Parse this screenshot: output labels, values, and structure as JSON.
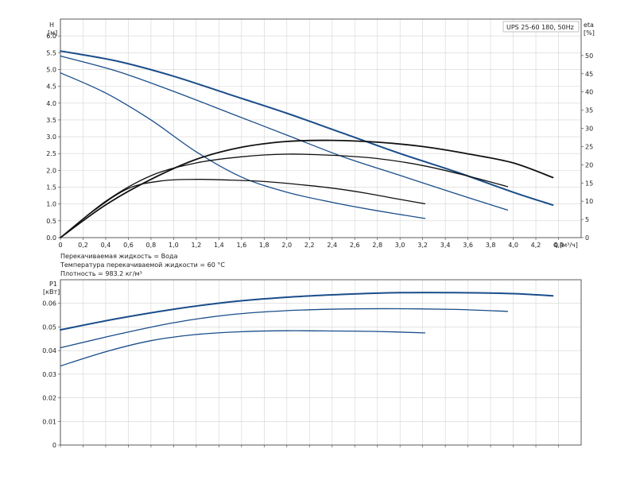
{
  "chart_data": [
    {
      "type": "line",
      "title": "UPS 25-60 180, 50Hz",
      "y_label": "H",
      "y_unit": "[м]",
      "y2_label": "eta",
      "y2_unit": "[%]",
      "x_label": "Q",
      "x_unit": "[м³/ч]",
      "xlim": [
        0,
        4.6
      ],
      "ylim": [
        0,
        6.5
      ],
      "y2lim": [
        0,
        60
      ],
      "grid": true,
      "x_ticks": [
        "0",
        "0,2",
        "0,4",
        "0,6",
        "0,8",
        "1,0",
        "1,2",
        "1,4",
        "1,6",
        "1,8",
        "2,0",
        "2,2",
        "2,4",
        "2,6",
        "2,8",
        "3,0",
        "3,2",
        "3,4",
        "3,6",
        "3,8",
        "4,0",
        "4,2",
        "4,4"
      ],
      "y_ticks": [
        "0.0",
        "0.5",
        "1.0",
        "1.5",
        "2.0",
        "2.5",
        "3.0",
        "3.5",
        "4.0",
        "4.5",
        "5.0",
        "5.5",
        "6.0"
      ],
      "y2_ticks": [
        "0",
        "5",
        "10",
        "15",
        "20",
        "25",
        "30",
        "35",
        "40",
        "45",
        "50"
      ],
      "series": [
        {
          "kind": "head",
          "axis": "left",
          "color": "#1a4d8a",
          "width": 2.0,
          "x": [
            0,
            0.5,
            1.0,
            1.5,
            2.0,
            2.5,
            3.0,
            3.5,
            4.0,
            4.35
          ],
          "y": [
            5.55,
            5.25,
            4.8,
            4.25,
            3.7,
            3.1,
            2.5,
            1.95,
            1.35,
            0.97
          ]
        },
        {
          "kind": "head",
          "axis": "left",
          "color": "#1a4d8a",
          "width": 1.3,
          "x": [
            0,
            0.5,
            1.0,
            1.5,
            2.0,
            2.5,
            3.0,
            3.5,
            3.95
          ],
          "y": [
            5.4,
            4.95,
            4.35,
            3.7,
            3.05,
            2.4,
            1.85,
            1.3,
            0.82
          ]
        },
        {
          "kind": "head",
          "axis": "left",
          "color": "#1a4d8a",
          "width": 1.3,
          "x": [
            0,
            0.4,
            0.8,
            1.2,
            1.6,
            2.0,
            2.4,
            2.8,
            3.22
          ],
          "y": [
            4.9,
            4.3,
            3.5,
            2.55,
            1.8,
            1.35,
            1.05,
            0.8,
            0.57
          ]
        },
        {
          "kind": "efficiency",
          "axis": "right",
          "color": "#111111",
          "width": 1.8,
          "x": [
            0,
            0.4,
            0.8,
            1.2,
            1.6,
            2.0,
            2.4,
            2.8,
            3.2,
            3.6,
            4.0,
            4.35
          ],
          "y": [
            0,
            9,
            16,
            21.5,
            24.8,
            26.4,
            26.7,
            26.2,
            25,
            23,
            20.5,
            16.5
          ]
        },
        {
          "kind": "efficiency",
          "axis": "right",
          "color": "#111111",
          "width": 1.3,
          "x": [
            0,
            0.4,
            0.8,
            1.2,
            1.6,
            2.0,
            2.4,
            2.8,
            3.2,
            3.6,
            3.95
          ],
          "y": [
            0,
            10,
            17,
            20.5,
            22.2,
            22.9,
            22.6,
            21.7,
            19.8,
            16.9,
            14
          ]
        },
        {
          "kind": "efficiency",
          "axis": "right",
          "color": "#111111",
          "width": 1.3,
          "x": [
            0,
            0.3,
            0.6,
            0.9,
            1.2,
            1.5,
            1.8,
            2.1,
            2.4,
            2.7,
            3.0,
            3.22
          ],
          "y": [
            0,
            7.5,
            13.5,
            15.6,
            16,
            15.8,
            15.4,
            14.6,
            13.6,
            12.2,
            10.5,
            9.3
          ]
        }
      ],
      "annotations": [
        "Перекачиваемая жидкость = Вода",
        "Температура перекачиваемой жидкости = 60 °C",
        "Плотность = 983.2 кг/м³"
      ]
    },
    {
      "type": "line",
      "y_label": "P1",
      "y_unit": "[кВт]",
      "xlim": [
        0,
        4.6
      ],
      "ylim": [
        0,
        0.07
      ],
      "grid": true,
      "y_ticks": [
        "0",
        "0.01",
        "0.02",
        "0.03",
        "0.04",
        "0.05",
        "0.06"
      ],
      "series": [
        {
          "color": "#1a4d8a",
          "width": 2.0,
          "x": [
            0,
            0.5,
            1.0,
            1.5,
            2.0,
            2.5,
            3.0,
            3.5,
            4.0,
            4.35
          ],
          "y": [
            0.0488,
            0.0535,
            0.0575,
            0.0606,
            0.0626,
            0.0638,
            0.0645,
            0.0645,
            0.0641,
            0.0632
          ]
        },
        {
          "color": "#1a4d8a",
          "width": 1.3,
          "x": [
            0,
            0.5,
            1.0,
            1.5,
            2.0,
            2.5,
            3.0,
            3.5,
            3.95
          ],
          "y": [
            0.0412,
            0.0468,
            0.0518,
            0.0552,
            0.0569,
            0.0576,
            0.0577,
            0.0574,
            0.0566
          ]
        },
        {
          "color": "#1a4d8a",
          "width": 1.3,
          "x": [
            0,
            0.4,
            0.8,
            1.2,
            1.6,
            2.0,
            2.4,
            2.8,
            3.22
          ],
          "y": [
            0.0335,
            0.0395,
            0.0442,
            0.0468,
            0.048,
            0.0484,
            0.0483,
            0.0481,
            0.0475
          ]
        }
      ]
    }
  ]
}
